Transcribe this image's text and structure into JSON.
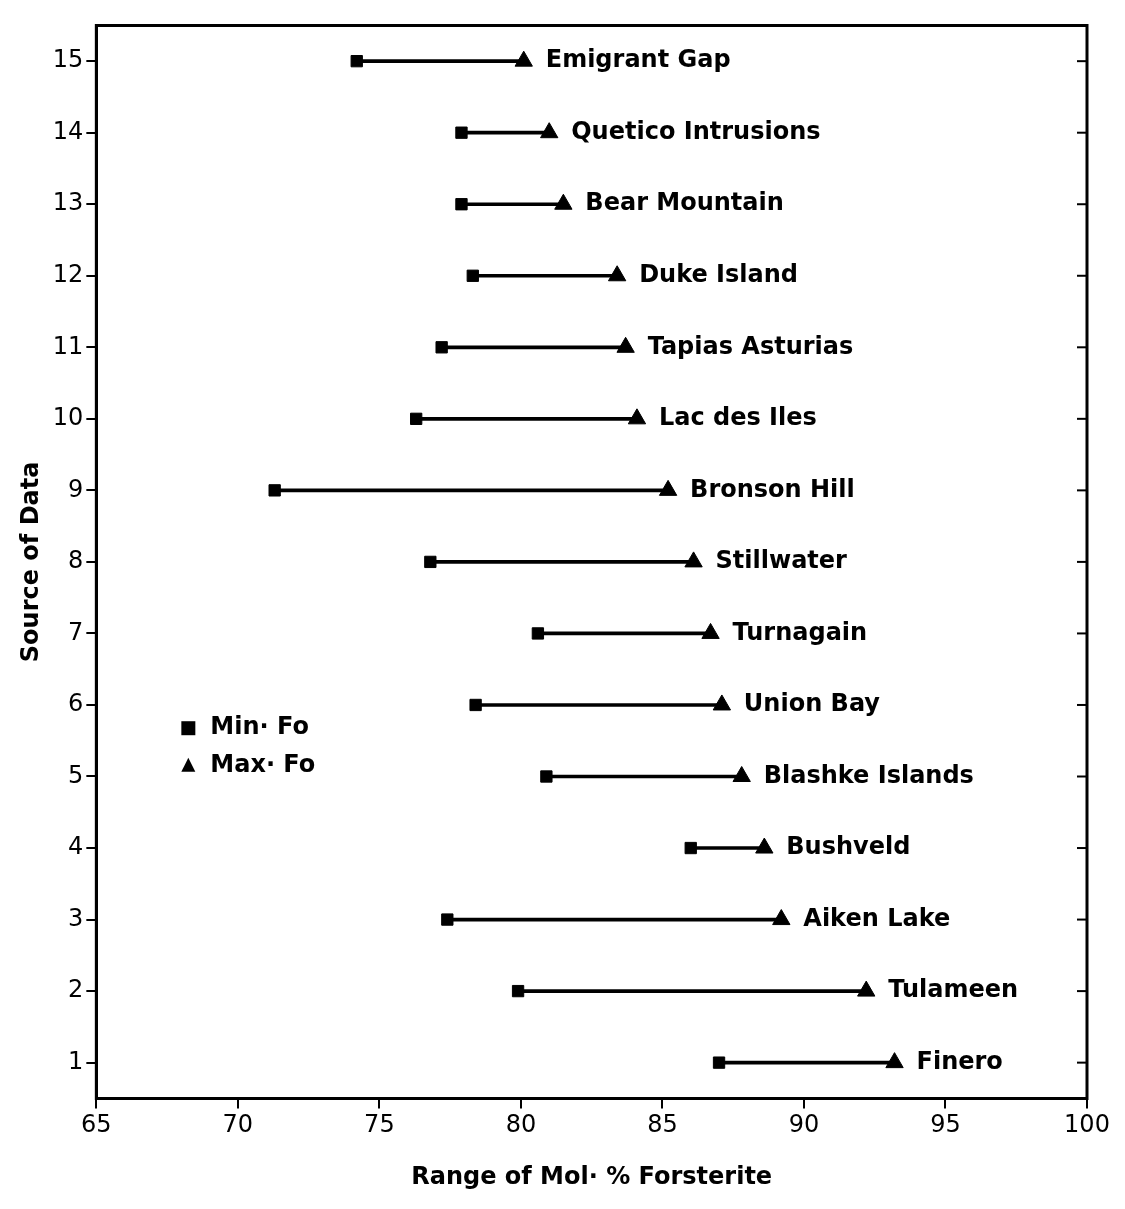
{
  "chart_data": {
    "type": "bar",
    "orientation": "horizontal",
    "xlabel": "Range of Mol· % Forsterite",
    "ylabel": "Source of Data",
    "categories": [
      "15",
      "14",
      "13",
      "12",
      "11",
      "10",
      "9",
      "8",
      "7",
      "6",
      "5",
      "4",
      "3",
      "2",
      "1"
    ],
    "xlim": [
      65,
      100
    ],
    "xticks": [
      65,
      70,
      75,
      80,
      85,
      90,
      95,
      100
    ],
    "legend": "left",
    "grid": false,
    "series": [
      {
        "color": "#000000",
        "base": [
          74.2,
          77.9,
          77.9,
          78.3,
          77.2,
          76.3,
          71.3,
          76.8,
          80.6,
          78.4,
          80.9,
          86.0,
          77.4,
          79.9,
          87.0
        ],
        "values": [
          5.9,
          3.1,
          3.6,
          5.1,
          6.5,
          7.8,
          13.9,
          9.3,
          6.1,
          8.7,
          6.9,
          2.6,
          11.8,
          12.3,
          6.2
        ]
      },
      {
        "type": "scatter",
        "name": "Min· Fo",
        "marker": "square",
        "color": "#000000",
        "values": [
          74.2,
          77.9,
          77.9,
          78.3,
          77.2,
          76.3,
          71.3,
          76.8,
          80.6,
          78.4,
          80.9,
          86.0,
          77.4,
          79.9,
          87.0
        ]
      },
      {
        "type": "scatter",
        "name": "Max· Fo",
        "marker": "triangle",
        "color": "#000000",
        "values": [
          80.1,
          81.0,
          81.5,
          83.4,
          83.7,
          84.1,
          85.2,
          86.1,
          86.7,
          87.1,
          87.8,
          88.6,
          89.2,
          92.2,
          93.2
        ]
      }
    ],
    "annotations": [
      {
        "text": "Emigrant Gap",
        "x": 80.1,
        "y": "15"
      },
      {
        "text": "Quetico Intrusions",
        "x": 81.0,
        "y": "14"
      },
      {
        "text": "Bear Mountain",
        "x": 81.5,
        "y": "13"
      },
      {
        "text": "Duke Island",
        "x": 83.4,
        "y": "12"
      },
      {
        "text": "Tapias Asturias",
        "x": 83.7,
        "y": "11"
      },
      {
        "text": "Lac des Iles",
        "x": 84.1,
        "y": "10"
      },
      {
        "text": "Bronson Hill",
        "x": 85.2,
        "y": "9"
      },
      {
        "text": "Stillwater",
        "x": 86.1,
        "y": "8"
      },
      {
        "text": "Turnagain",
        "x": 86.7,
        "y": "7"
      },
      {
        "text": "Union Bay",
        "x": 87.1,
        "y": "6"
      },
      {
        "text": "Blashke Islands",
        "x": 87.8,
        "y": "5"
      },
      {
        "text": "Bushveld",
        "x": 88.6,
        "y": "4"
      },
      {
        "text": "Aiken Lake",
        "x": 89.2,
        "y": "3"
      },
      {
        "text": "Tulameen",
        "x": 92.2,
        "y": "2"
      },
      {
        "text": "Finero",
        "x": 93.2,
        "y": "1"
      }
    ]
  }
}
